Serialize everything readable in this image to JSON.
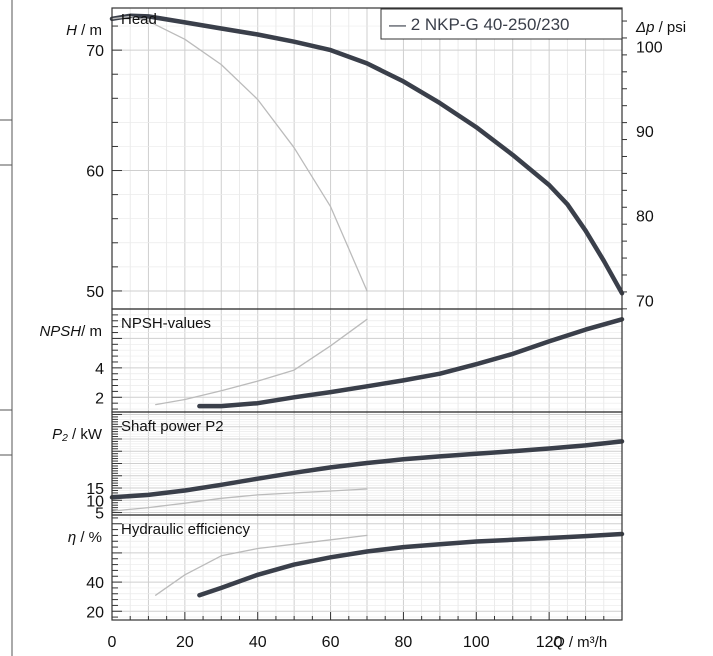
{
  "chart_data": {
    "type": "line",
    "legend": {
      "label": "— 2 NKP-G 40-250/230",
      "position": "top-right"
    },
    "x_axis": {
      "label_var": "Q",
      "label_unit": " / m³/h",
      "range": [
        0,
        140
      ],
      "ticks": [
        "0",
        "20",
        "40",
        "60",
        "80",
        "100",
        "120"
      ]
    },
    "colors": {
      "main": "#3a3f4a",
      "secondary": "#bbbbbb",
      "grid": "#dddddd",
      "frame": "#333333"
    },
    "panels": [
      {
        "id": "head",
        "title": "Head",
        "ylabel_var": "H",
        "ylabel_unit": " / m",
        "ylim": [
          48.5,
          73.5
        ],
        "ticks": [
          {
            "value": 50,
            "label": "50"
          },
          {
            "value": 60,
            "label": "60"
          },
          {
            "value": 70,
            "label": "70"
          }
        ],
        "right_axis": {
          "label_var": "Δp",
          "label_unit": " / psi",
          "factor": 1.4223,
          "ticks": [
            {
              "value": 70,
              "label": "70"
            },
            {
              "value": 80,
              "label": "80"
            },
            {
              "value": 90,
              "label": "90"
            },
            {
              "value": 100,
              "label": "100"
            }
          ]
        },
        "series": [
          {
            "role": "main",
            "x": [
              0,
              5,
              10,
              20,
              30,
              40,
              50,
              60,
              70,
              80,
              90,
              100,
              110,
              120,
              125,
              130,
              135,
              140
            ],
            "y": [
              72.6,
              72.85,
              72.8,
              72.3,
              71.8,
              71.3,
              70.7,
              70.0,
              68.9,
              67.4,
              65.6,
              63.6,
              61.3,
              58.8,
              57.2,
              55.0,
              52.5,
              49.8
            ]
          },
          {
            "role": "secondary",
            "x": [
              0,
              5,
              10,
              20,
              30,
              40,
              50,
              60,
              65,
              70
            ],
            "y": [
              72.6,
              72.8,
              72.4,
              70.9,
              68.8,
              65.9,
              61.9,
              57.0,
              53.5,
              50.0
            ]
          }
        ]
      },
      {
        "id": "npsh",
        "title": "NPSH-values",
        "ylabel_var": "NPSH",
        "ylabel_unit": "/ m",
        "ylim": [
          1.0,
          8.0
        ],
        "ticks": [
          {
            "value": 2,
            "label": "2"
          },
          {
            "value": 4,
            "label": "4"
          }
        ],
        "series": [
          {
            "role": "main",
            "x": [
              24,
              30,
              40,
              50,
              60,
              70,
              80,
              90,
              100,
              110,
              120,
              130,
              140
            ],
            "y": [
              1.4,
              1.4,
              1.6,
              2.0,
              2.35,
              2.75,
              3.15,
              3.6,
              4.25,
              4.95,
              5.8,
              6.6,
              7.3
            ]
          },
          {
            "role": "secondary",
            "x": [
              12,
              20,
              30,
              40,
              50,
              60,
              70
            ],
            "y": [
              1.5,
              1.85,
              2.45,
              3.1,
              3.85,
              5.5,
              7.3
            ]
          }
        ]
      },
      {
        "id": "power",
        "title": "Shaft power P2",
        "ylabel_var": "P₂",
        "ylabel_unit": " / kW",
        "ylim": [
          4.0,
          46.0
        ],
        "ticks": [
          {
            "value": 5,
            "label": "5"
          },
          {
            "value": 10,
            "label": "10"
          },
          {
            "value": 15,
            "label": "15"
          }
        ],
        "series": [
          {
            "role": "main",
            "x": [
              0,
              10,
              20,
              30,
              40,
              50,
              60,
              70,
              80,
              90,
              100,
              110,
              120,
              130,
              140
            ],
            "y": [
              11.2,
              12.2,
              14.0,
              16.3,
              18.8,
              21.2,
              23.4,
              25.2,
              26.7,
              27.9,
              29.0,
              30.0,
              31.1,
              32.4,
              34.0
            ]
          },
          {
            "role": "secondary",
            "x": [
              0,
              10,
              20,
              30,
              40,
              50,
              60,
              70
            ],
            "y": [
              5.6,
              7.0,
              8.8,
              10.8,
              12.2,
              13.0,
              13.8,
              14.6
            ]
          }
        ]
      },
      {
        "id": "efficiency",
        "title": "Hydraulic efficiency",
        "ylabel_var": "η",
        "ylabel_unit": " / %",
        "ylim": [
          14.0,
          86.0
        ],
        "ticks": [
          {
            "value": 20,
            "label": "20"
          },
          {
            "value": 40,
            "label": "40"
          }
        ],
        "series": [
          {
            "role": "main",
            "x": [
              24,
              30,
              40,
              50,
              60,
              70,
              80,
              90,
              100,
              110,
              120,
              130,
              140
            ],
            "y": [
              31,
              36,
              45,
              52,
              57,
              61,
              64,
              66,
              67.8,
              69,
              70.2,
              71.5,
              73
            ]
          },
          {
            "role": "secondary",
            "x": [
              12,
              20,
              30,
              40,
              50,
              60,
              70
            ],
            "y": [
              31,
              45,
              58,
              63,
              66,
              69,
              72
            ]
          }
        ]
      }
    ]
  }
}
